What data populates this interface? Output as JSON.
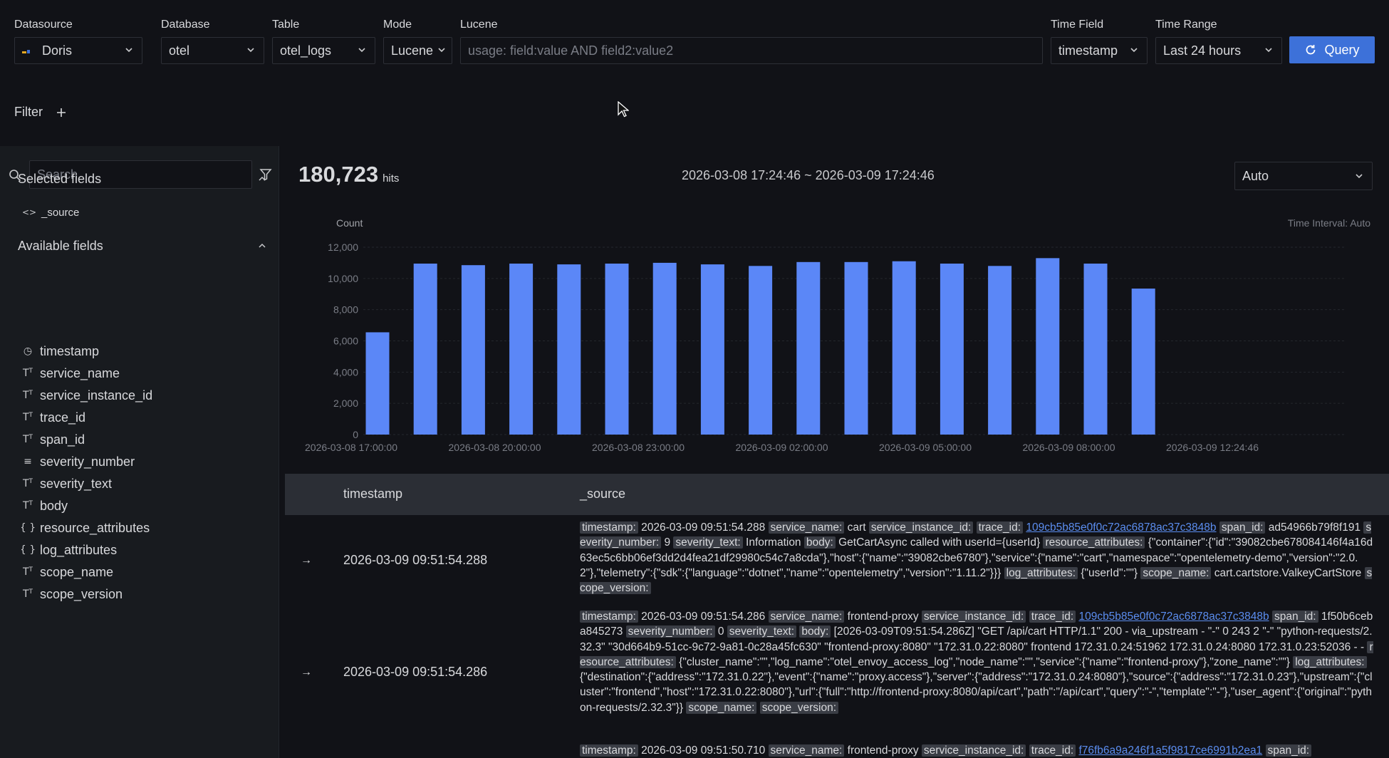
{
  "topbar": {
    "datasource": {
      "label": "Datasource",
      "value": "Doris"
    },
    "database": {
      "label": "Database",
      "value": "otel"
    },
    "table": {
      "label": "Table",
      "value": "otel_logs"
    },
    "mode": {
      "label": "Mode",
      "value": "Lucene"
    },
    "lucene": {
      "label": "Lucene",
      "placeholder": "usage: field:value AND field2:value2"
    },
    "time_field": {
      "label": "Time Field",
      "value": "timestamp"
    },
    "time_range": {
      "label": "Time Range",
      "value": "Last 24 hours"
    },
    "query_label": "Query"
  },
  "filter": {
    "label": "Filter",
    "add_icon": "plus-icon"
  },
  "sidebar": {
    "search_placeholder": "Search",
    "selected_title": "Selected fields",
    "selected": [
      {
        "name": "_source",
        "icon": "code-icon"
      }
    ],
    "available_title": "Available fields",
    "available": [
      {
        "name": "timestamp",
        "icon": "clock-icon"
      },
      {
        "name": "service_name",
        "icon": "text-type-icon"
      },
      {
        "name": "service_instance_id",
        "icon": "text-type-icon"
      },
      {
        "name": "trace_id",
        "icon": "text-type-icon"
      },
      {
        "name": "span_id",
        "icon": "text-type-icon"
      },
      {
        "name": "severity_number",
        "icon": "number-list-icon"
      },
      {
        "name": "severity_text",
        "icon": "text-type-icon"
      },
      {
        "name": "body",
        "icon": "text-type-icon"
      },
      {
        "name": "resource_attributes",
        "icon": "braces-icon"
      },
      {
        "name": "log_attributes",
        "icon": "braces-icon"
      },
      {
        "name": "scope_name",
        "icon": "text-type-icon"
      },
      {
        "name": "scope_version",
        "icon": "text-type-icon"
      }
    ]
  },
  "summary": {
    "hits": "180,723",
    "hits_label": "hits",
    "range": "2026-03-08 17:24:46 ~ 2026-03-09 17:24:46",
    "interval_select": "Auto"
  },
  "chart_data": {
    "type": "bar",
    "ylabel": "Count",
    "note": "Time Interval: Auto",
    "ylim": [
      0,
      12000
    ],
    "yticks": [
      "0",
      "2,000",
      "4,000",
      "6,000",
      "8,000",
      "10,000",
      "12,000"
    ],
    "xticks": [
      "2026-03-08 17:00:00",
      "2026-03-08 20:00:00",
      "2026-03-08 23:00:00",
      "2026-03-09 02:00:00",
      "2026-03-09 05:00:00",
      "2026-03-09 08:00:00",
      "2026-03-09 12:24:46"
    ],
    "values": [
      6550,
      10950,
      10850,
      10950,
      10900,
      10950,
      11000,
      10900,
      10800,
      11050,
      11050,
      11100,
      10950,
      10800,
      11300,
      10950,
      9350
    ],
    "color": "#5b87f7"
  },
  "table": {
    "headers": {
      "timestamp": "timestamp",
      "source": "_source"
    },
    "expand_icon": "→",
    "rows": [
      {
        "timestamp": "2026-03-09 09:51:54.288",
        "parts": [
          {
            "k": "timestamp:",
            "v": "2026-03-09 09:51:54.288"
          },
          {
            "k": "service_name:",
            "v": "cart"
          },
          {
            "k": "service_instance_id:",
            "v": ""
          },
          {
            "k": "trace_id:",
            "v": "109cb5b85e0f0c72ac6878ac37c3848b",
            "link": true
          },
          {
            "k": "span_id:",
            "v": "ad54966b79f8f191"
          },
          {
            "k": "severity_number:",
            "v": "9"
          },
          {
            "k": "severity_text:",
            "v": "Information"
          },
          {
            "k": "body:",
            "v": "GetCartAsync called with userId={userId}"
          },
          {
            "k": "resource_attributes:",
            "v": "{\"container\":{\"id\":\"39082cbe678084146f4a16d63ec5c6bb06ef3dd2d4fea21df29980c54c7a8cda\"},\"host\":{\"name\":\"39082cbe6780\"},\"service\":{\"name\":\"cart\",\"namespace\":\"opentelemetry-demo\",\"version\":\"2.0.2\"},\"telemetry\":{\"sdk\":{\"language\":\"dotnet\",\"name\":\"opentelemetry\",\"version\":\"1.11.2\"}}}"
          },
          {
            "k": "log_attributes:",
            "v": "{\"userId\":\"\"}"
          },
          {
            "k": "scope_name:",
            "v": "cart.cartstore.ValkeyCartStore"
          },
          {
            "k": "scope_version:",
            "v": ""
          }
        ]
      },
      {
        "timestamp": "2026-03-09 09:51:54.286",
        "parts": [
          {
            "k": "timestamp:",
            "v": "2026-03-09 09:51:54.286"
          },
          {
            "k": "service_name:",
            "v": "frontend-proxy"
          },
          {
            "k": "service_instance_id:",
            "v": ""
          },
          {
            "k": "trace_id:",
            "v": "109cb5b85e0f0c72ac6878ac37c3848b",
            "link": true
          },
          {
            "k": "span_id:",
            "v": "1f50b6ceba845273"
          },
          {
            "k": "severity_number:",
            "v": "0"
          },
          {
            "k": "severity_text:",
            "v": ""
          },
          {
            "k": "body:",
            "v": "[2026-03-09T09:51:54.286Z] \"GET /api/cart HTTP/1.1\" 200 - via_upstream - \"-\" 0 243 2 \"-\" \"python-requests/2.32.3\" \"30d664b9-51cc-9c72-9a81-0c28a45fc630\" \"frontend-proxy:8080\" \"172.31.0.22:8080\" frontend 172.31.0.24:51962 172.31.0.24:8080 172.31.0.23:52036 - -"
          },
          {
            "k": "resource_attributes:",
            "v": "{\"cluster_name\":\"\",\"log_name\":\"otel_envoy_access_log\",\"node_name\":\"\",\"service\":{\"name\":\"frontend-proxy\"},\"zone_name\":\"\"}"
          },
          {
            "k": "log_attributes:",
            "v": "{\"destination\":{\"address\":\"172.31.0.22\"},\"event\":{\"name\":\"proxy.access\"},\"server\":{\"address\":\"172.31.0.24:8080\"},\"source\":{\"address\":\"172.31.0.23\"},\"upstream\":{\"cluster\":\"frontend\",\"host\":\"172.31.0.22:8080\"},\"url\":{\"full\":\"http://frontend-proxy:8080/api/cart\",\"path\":\"/api/cart\",\"query\":\"-\",\"template\":\"-\"},\"user_agent\":{\"original\":\"python-requests/2.32.3\"}}"
          },
          {
            "k": "scope_name:",
            "v": ""
          },
          {
            "k": "scope_version:",
            "v": ""
          }
        ]
      },
      {
        "timestamp": "",
        "parts": [
          {
            "k": "timestamp:",
            "v": "2026-03-09 09:51:50.710"
          },
          {
            "k": "service_name:",
            "v": "frontend-proxy"
          },
          {
            "k": "service_instance_id:",
            "v": ""
          },
          {
            "k": "trace_id:",
            "v": "f76fb6a9a246f1a5f9817ce6991b2ea1",
            "link": true
          },
          {
            "k": "span_id:",
            "v": ""
          }
        ]
      }
    ]
  }
}
